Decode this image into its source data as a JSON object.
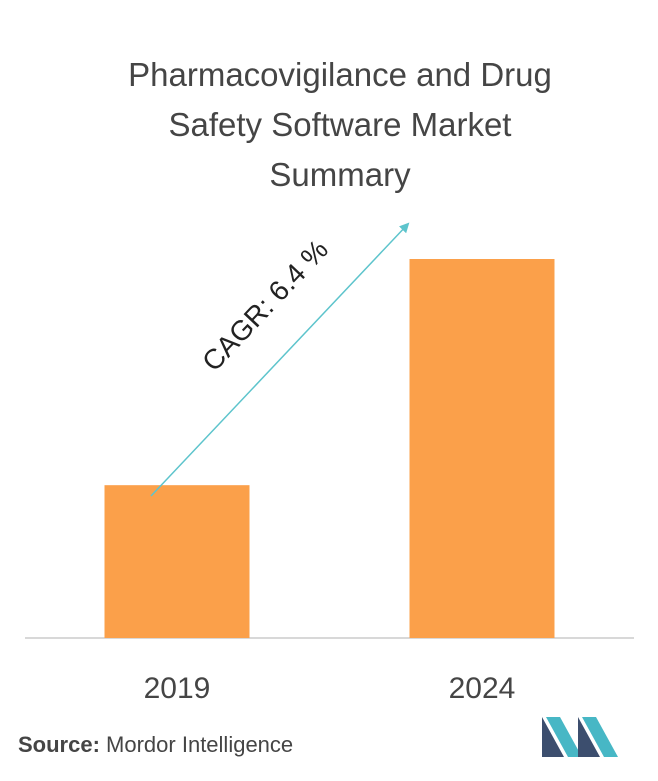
{
  "title_lines": [
    "Pharmacovigilance and Drug",
    "Safety Software Market",
    "Summary"
  ],
  "chart_data": {
    "type": "bar",
    "title": "Pharmacovigilance and Drug Safety Software Market Summary",
    "categories": [
      "2019",
      "2024"
    ],
    "values": [
      1,
      2.48
    ],
    "xlabel": "",
    "ylabel": "",
    "bar_color": "#FBA04A",
    "annotation": "CAGR: 6.4 %",
    "arrow_color": "#5DC4CC",
    "axis_color": "#CCCCCC",
    "grid": false
  },
  "source": {
    "label": "Source:",
    "text": "Mordor Intelligence"
  },
  "logo": {
    "icon": "mordor-intelligence-logo",
    "colors": [
      "#3C4E6E",
      "#47B7C5"
    ]
  }
}
